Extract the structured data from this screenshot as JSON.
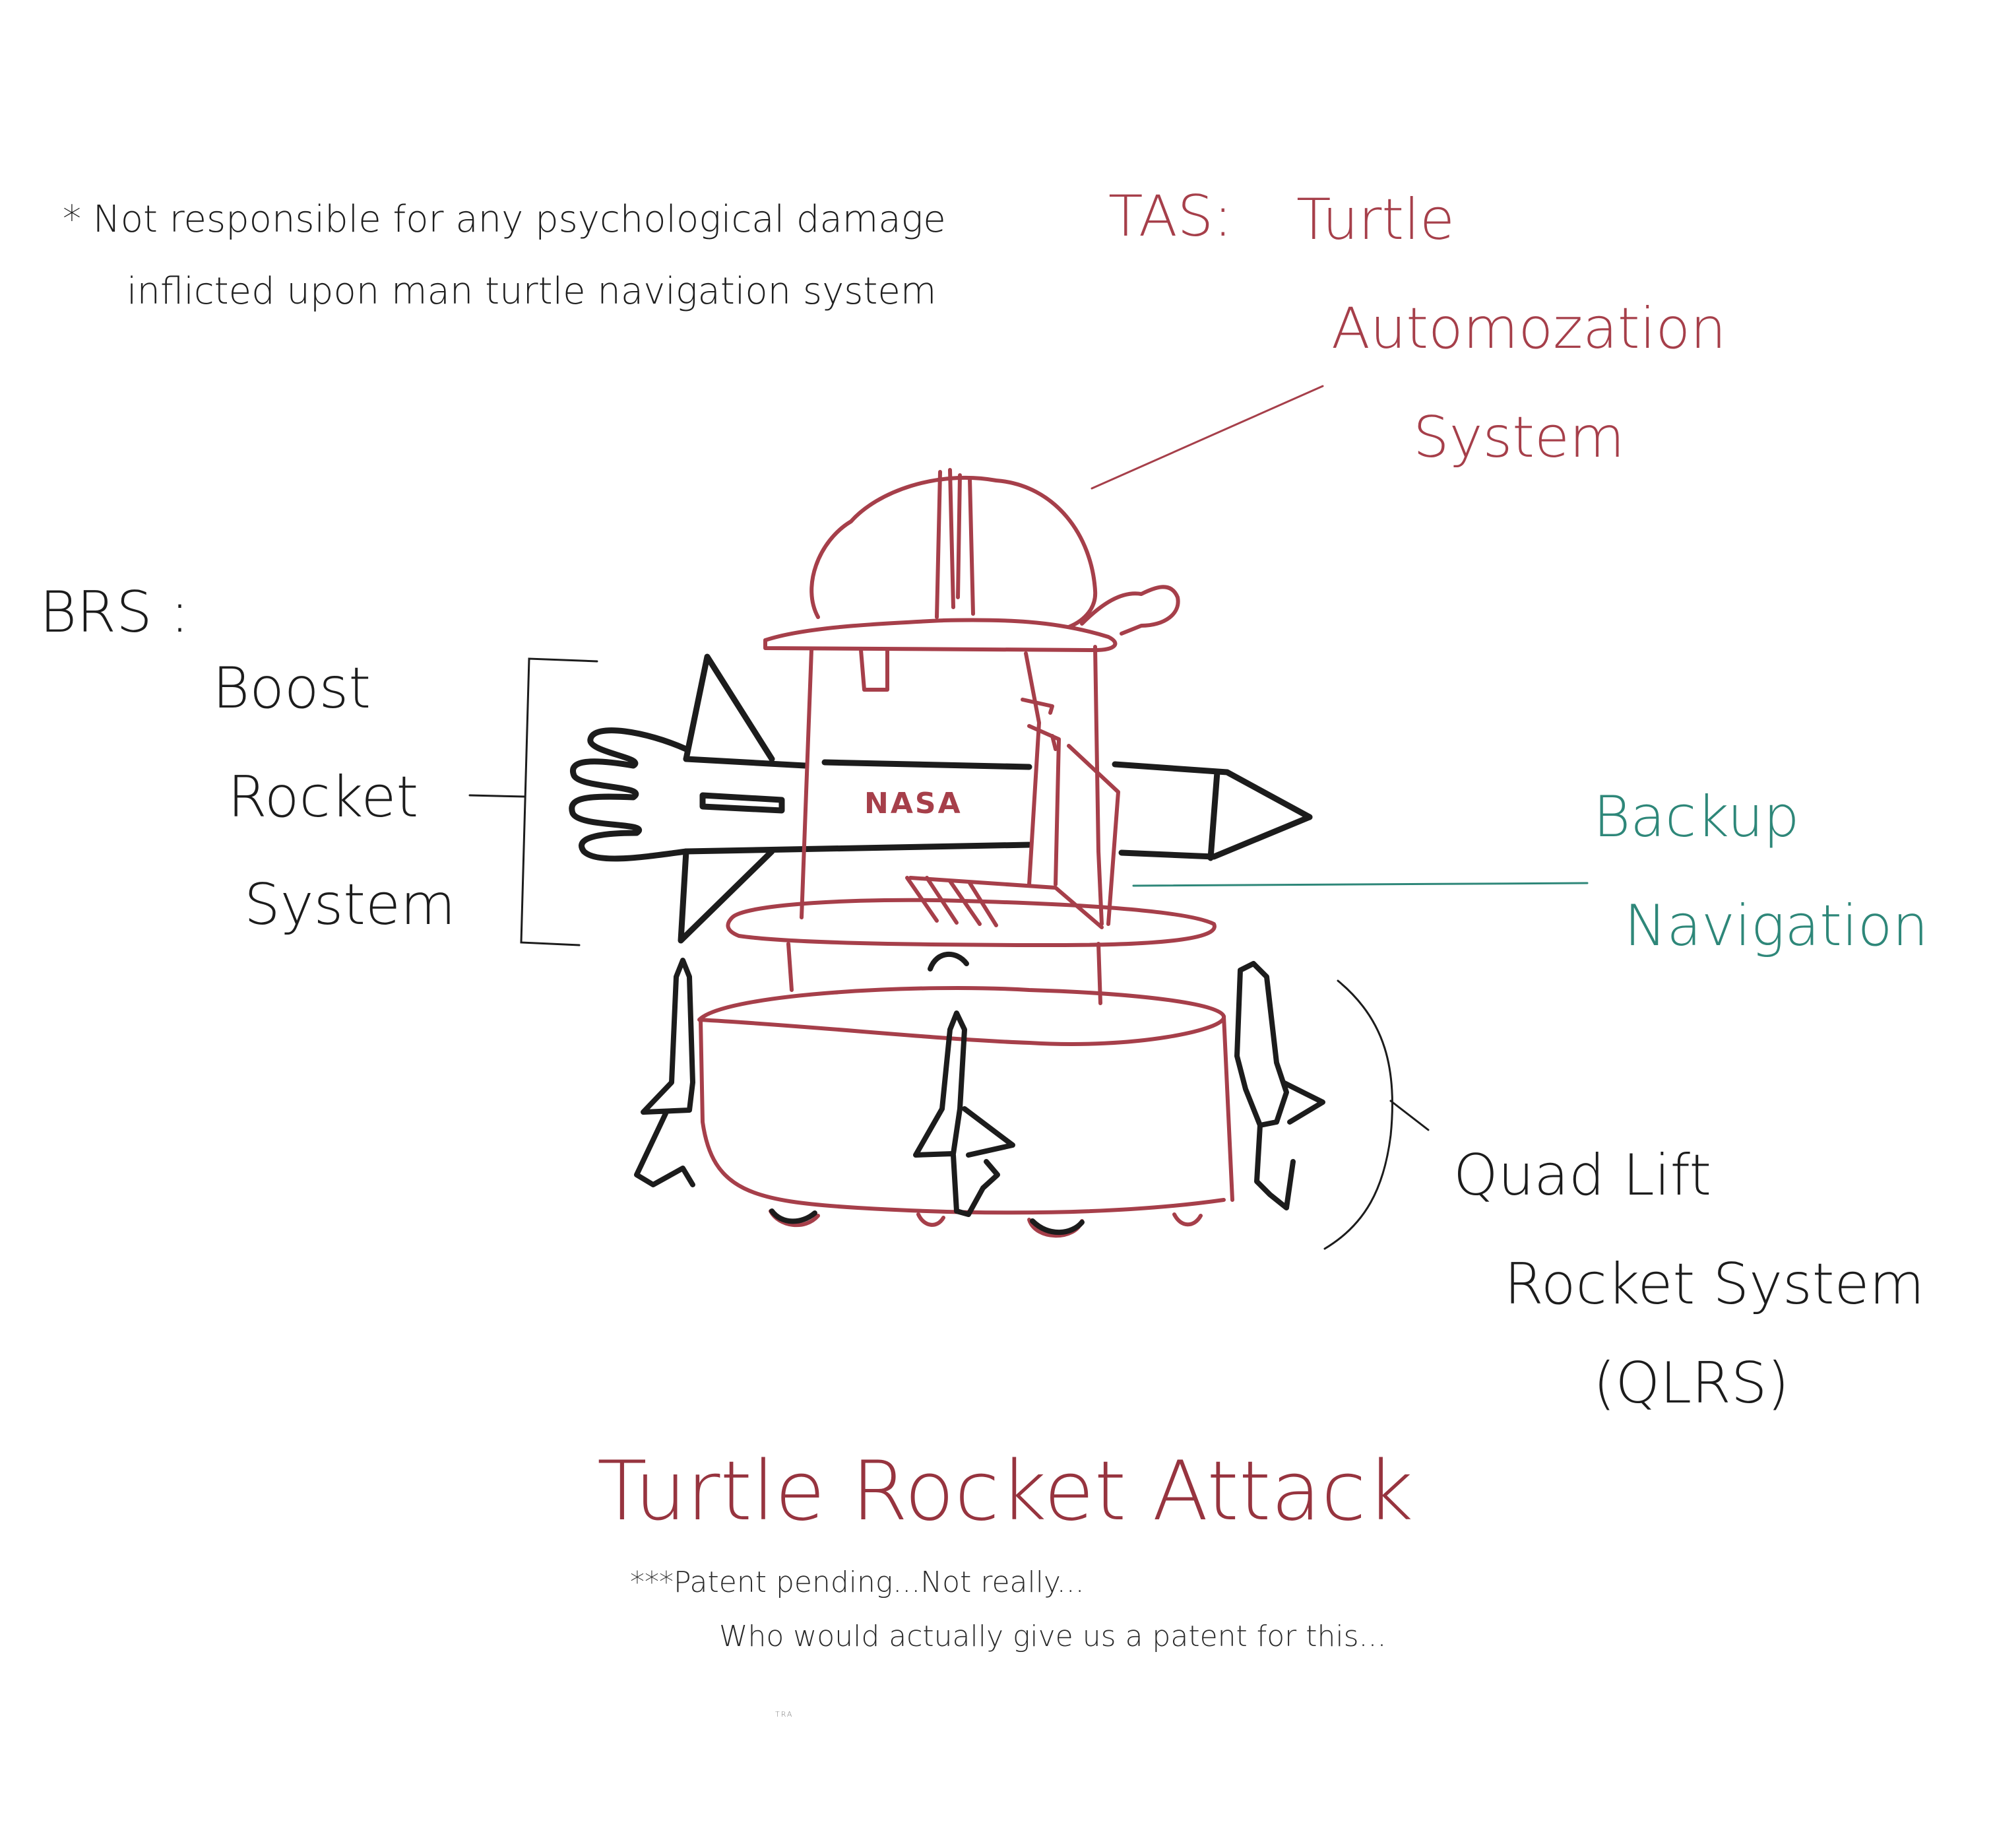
{
  "disclaimer": {
    "line1": "* Not responsible for any psychological damage",
    "line2": "inflicted upon man turtle navigation system"
  },
  "tas": {
    "abbr": "TAS:",
    "word1": "Turtle",
    "word2": "Automozation",
    "word3": "System"
  },
  "brs": {
    "abbr": "BRS :",
    "word1": "Boost",
    "word2": "Rocket",
    "word3": "System"
  },
  "backup_nav": {
    "word1": "Backup",
    "word2": "Navigation"
  },
  "qlrs": {
    "line1": "Quad Lift",
    "line2": "Rocket System",
    "line3": "(QLRS)"
  },
  "drawing": {
    "body_label": "NASA"
  },
  "title": "Turtle Rocket Attack",
  "footnote": {
    "line1": "***Patent pending...Not really...",
    "line2": "Who would actually give us a patent for this..."
  },
  "signature": "TRA",
  "colors": {
    "turtle_red": "#a63f4a",
    "ink_black": "#1c1c1c",
    "backup_teal": "#2e8779",
    "title_red": "#97343f"
  }
}
